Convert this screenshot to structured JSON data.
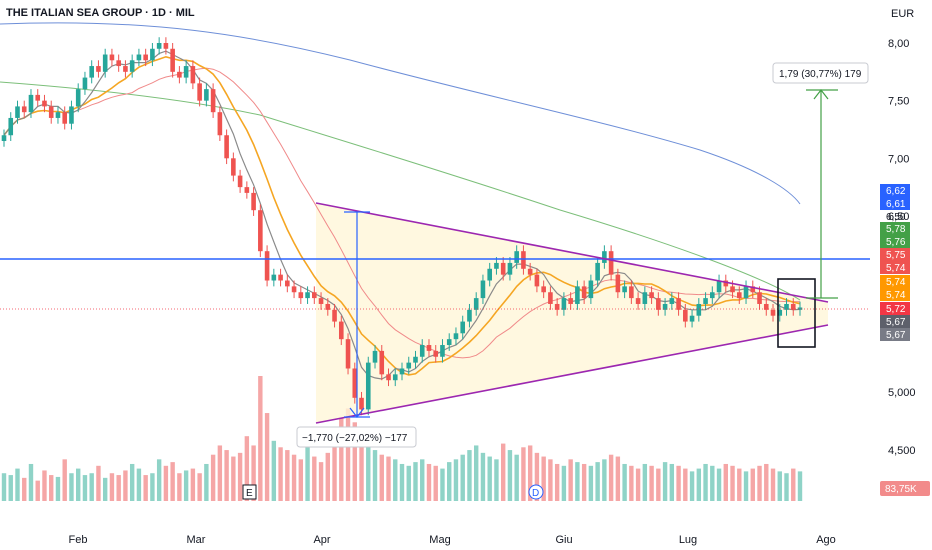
{
  "header": {
    "title": "THE ITALIAN SEA GROUP · 1D · MIL",
    "currency": "EUR"
  },
  "chart_data": {
    "type": "candlestick",
    "title": "THE ITALIAN SEA GROUP · 1D · MIL",
    "y_ticks": [
      "8,00",
      "7,50",
      "7,00",
      "6,50",
      "5,000",
      "4,500"
    ],
    "y_tick_values": [
      8.0,
      7.5,
      7.0,
      6.5,
      5.0,
      4.5
    ],
    "x_ticks": [
      "Feb",
      "Mar",
      "Apr",
      "Mag",
      "Giu",
      "Lug",
      "Ago"
    ],
    "ylim": [
      4.2,
      8.3
    ],
    "price_labels": [
      {
        "text": "6,62",
        "value": 6.62,
        "color": "#2962ff"
      },
      {
        "text": "6,61",
        "value": 6.61,
        "color": "#2962ff"
      },
      {
        "text": "6,50",
        "value": 6.5,
        "color": "none"
      },
      {
        "text": "5,78",
        "value": 5.78,
        "color": "#43a047"
      },
      {
        "text": "5,76",
        "value": 5.76,
        "color": "#43a047"
      },
      {
        "text": "5,75",
        "value": 5.75,
        "color": "#ef5350"
      },
      {
        "text": "5,74",
        "value": 5.74,
        "color": "#ef5350"
      },
      {
        "text": "5,74",
        "value": 5.74,
        "color": "#ff9800"
      },
      {
        "text": "5,74",
        "value": 5.74,
        "color": "#ff9800"
      },
      {
        "text": "5,72",
        "value": 5.72,
        "color": "#f23645"
      },
      {
        "text": "5,67",
        "value": 5.67,
        "color": "#5d606b"
      },
      {
        "text": "5,67",
        "value": 5.67,
        "color": "#787b86"
      }
    ],
    "volume_label": "83,75K",
    "measure_up": "1,79 (30,77%) 179",
    "measure_down": "−1,770 (−27,02%) −177",
    "event_markers": [
      "E",
      "D"
    ],
    "closes": [
      7.2,
      7.35,
      7.45,
      7.4,
      7.55,
      7.5,
      7.45,
      7.35,
      7.4,
      7.3,
      7.45,
      7.6,
      7.7,
      7.8,
      7.75,
      7.9,
      7.85,
      7.8,
      7.75,
      7.85,
      7.9,
      7.85,
      7.95,
      8.0,
      7.95,
      7.75,
      7.7,
      7.8,
      7.65,
      7.5,
      7.6,
      7.4,
      7.2,
      7.0,
      6.85,
      6.75,
      6.7,
      6.55,
      6.2,
      5.95,
      6.0,
      5.95,
      5.9,
      5.85,
      5.8,
      5.85,
      5.8,
      5.75,
      5.7,
      5.6,
      5.45,
      5.2,
      4.95,
      4.85,
      5.25,
      5.35,
      5.15,
      5.1,
      5.15,
      5.2,
      5.25,
      5.3,
      5.4,
      5.35,
      5.3,
      5.4,
      5.45,
      5.5,
      5.6,
      5.7,
      5.8,
      5.95,
      6.05,
      6.1,
      6.0,
      6.1,
      6.2,
      6.05,
      6.0,
      5.9,
      5.85,
      5.75,
      5.7,
      5.8,
      5.75,
      5.9,
      5.8,
      5.95,
      6.1,
      6.2,
      6.0,
      5.85,
      5.9,
      5.8,
      5.75,
      5.85,
      5.8,
      5.7,
      5.75,
      5.8,
      5.7,
      5.6,
      5.65,
      5.75,
      5.8,
      5.85,
      5.95,
      5.9,
      5.85,
      5.8,
      5.9,
      5.85,
      5.75,
      5.7,
      5.65,
      5.7,
      5.75,
      5.7,
      5.72
    ],
    "volumes": [
      30,
      28,
      35,
      25,
      40,
      22,
      33,
      28,
      26,
      45,
      30,
      35,
      28,
      30,
      38,
      25,
      30,
      28,
      33,
      40,
      35,
      28,
      30,
      45,
      38,
      42,
      30,
      33,
      35,
      30,
      40,
      50,
      60,
      55,
      48,
      52,
      70,
      60,
      135,
      95,
      65,
      58,
      55,
      50,
      45,
      60,
      48,
      42,
      52,
      70,
      90,
      100,
      85,
      75,
      65,
      55,
      50,
      48,
      45,
      40,
      38,
      42,
      45,
      40,
      38,
      35,
      42,
      45,
      50,
      55,
      60,
      52,
      48,
      45,
      62,
      55,
      50,
      58,
      60,
      52,
      48,
      45,
      40,
      38,
      45,
      42,
      40,
      38,
      42,
      45,
      50,
      48,
      40,
      38,
      35,
      40,
      38,
      35,
      42,
      40,
      38,
      35,
      32,
      35,
      40,
      38,
      35,
      40,
      38,
      35,
      32,
      35,
      38,
      40,
      35,
      32,
      30,
      35,
      32
    ]
  }
}
